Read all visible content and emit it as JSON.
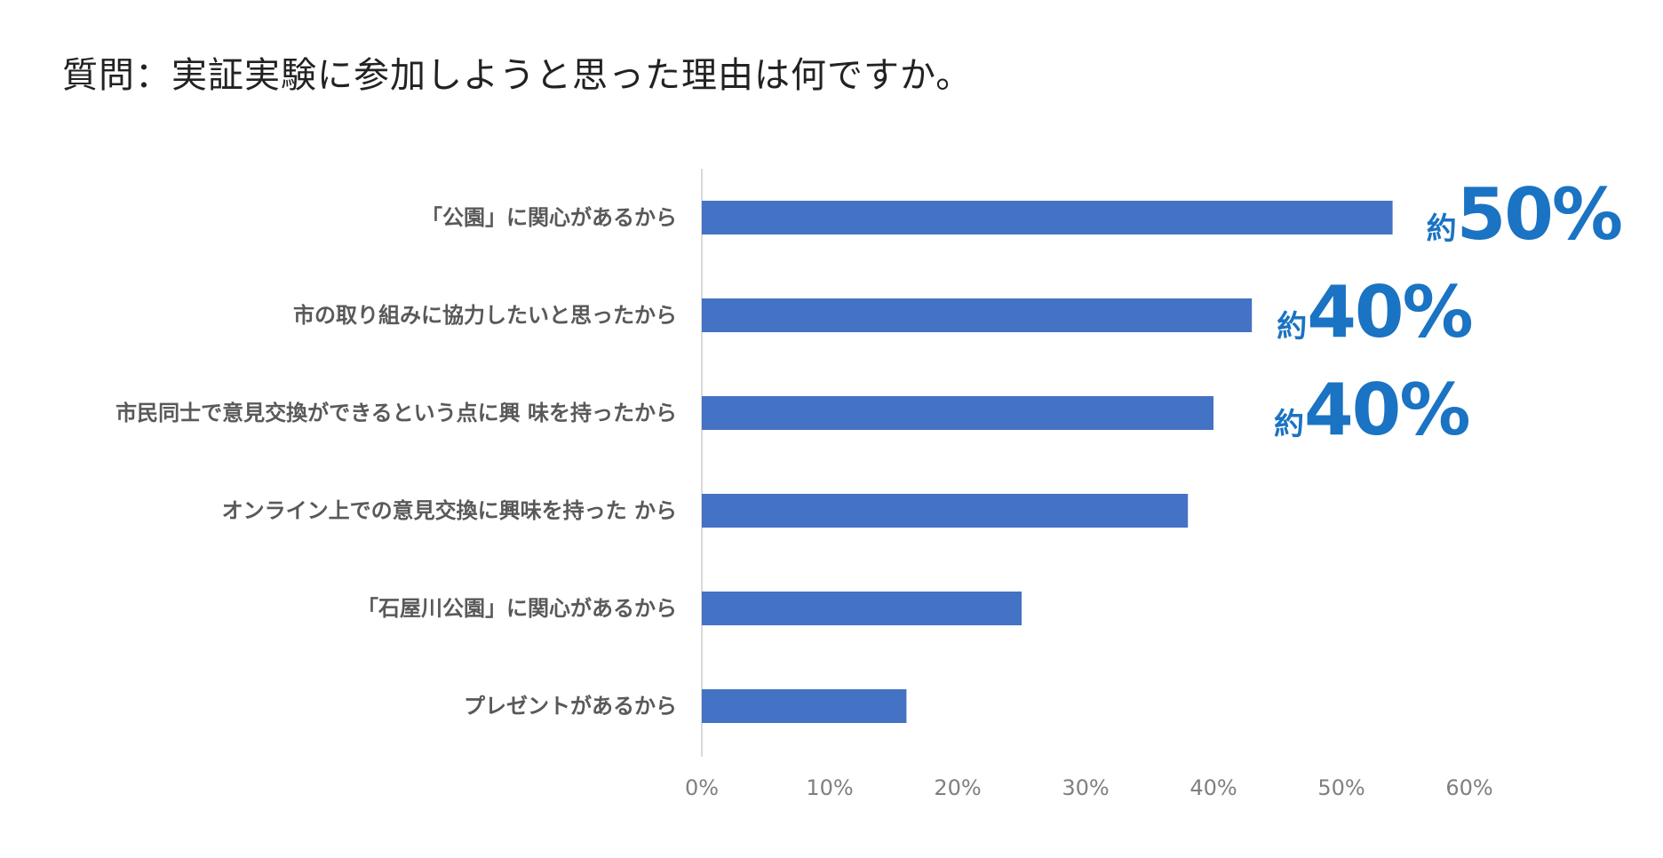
{
  "title": "質問：実証実験に参加しようと思った理由は何ですか。",
  "colors": {
    "bar": "#4472C4",
    "annotation": "#1A73C3",
    "axis": "#d9d9d9"
  },
  "chart_data": {
    "type": "bar",
    "orientation": "horizontal",
    "categories": [
      "「公園」に関心があるから",
      "市の取り組みに協力したいと思ったから",
      "市民同士で意見交換ができるという点に興 味を持ったから",
      "オンライン上での意見交換に興味を持った から",
      "「石屋川公園」に関心があるから",
      "プレゼントがあるから"
    ],
    "values": [
      54,
      43,
      40,
      38,
      25,
      16
    ],
    "xlim": [
      0,
      60
    ],
    "xticks": [
      "0%",
      "10%",
      "20%",
      "30%",
      "40%",
      "50%",
      "60%"
    ],
    "grid": false,
    "annotations": [
      {
        "category_index": 0,
        "prefix": "約",
        "text": "50%"
      },
      {
        "category_index": 1,
        "prefix": "約",
        "text": "40%"
      },
      {
        "category_index": 2,
        "prefix": "約",
        "text": "40%"
      }
    ]
  }
}
